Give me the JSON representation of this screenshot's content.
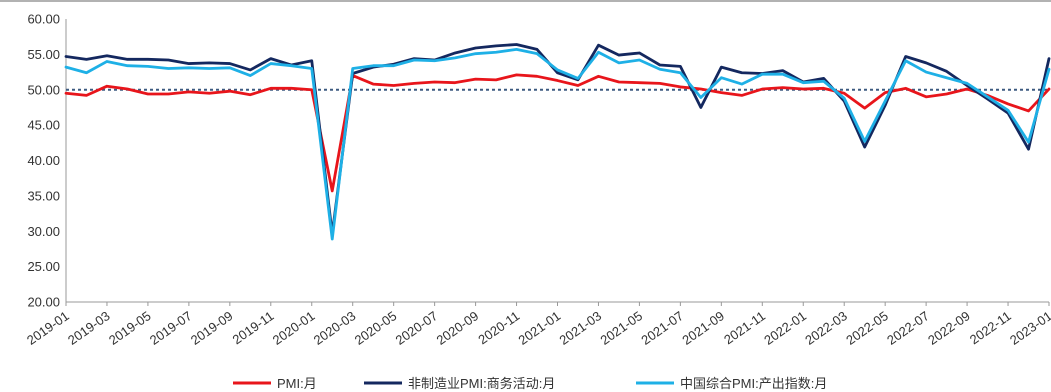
{
  "chart_data": {
    "type": "line",
    "title": "",
    "xlabel": "",
    "ylabel": "",
    "ylim": [
      20,
      60
    ],
    "yticks": [
      "20.00",
      "25.00",
      "30.00",
      "35.00",
      "40.00",
      "45.00",
      "50.00",
      "55.00",
      "60.00"
    ],
    "reference_line": 50,
    "x": [
      "2019-01",
      "2019-02",
      "2019-03",
      "2019-04",
      "2019-05",
      "2019-06",
      "2019-07",
      "2019-08",
      "2019-09",
      "2019-10",
      "2019-11",
      "2019-12",
      "2020-01",
      "2020-02",
      "2020-03",
      "2020-04",
      "2020-05",
      "2020-06",
      "2020-07",
      "2020-08",
      "2020-09",
      "2020-10",
      "2020-11",
      "2020-12",
      "2021-01",
      "2021-02",
      "2021-03",
      "2021-04",
      "2021-05",
      "2021-06",
      "2021-07",
      "2021-08",
      "2021-09",
      "2021-10",
      "2021-11",
      "2021-12",
      "2022-01",
      "2022-02",
      "2022-03",
      "2022-04",
      "2022-05",
      "2022-06",
      "2022-07",
      "2022-08",
      "2022-09",
      "2022-10",
      "2022-11",
      "2022-12",
      "2023-01"
    ],
    "xticks": [
      "2019-01",
      "2019-03",
      "2019-05",
      "2019-07",
      "2019-09",
      "2019-11",
      "2020-01",
      "2020-03",
      "2020-05",
      "2020-07",
      "2020-09",
      "2020-11",
      "2021-01",
      "2021-03",
      "2021-05",
      "2021-07",
      "2021-09",
      "2021-11",
      "2022-01",
      "2022-03",
      "2022-05",
      "2022-07",
      "2022-09",
      "2022-11",
      "2023-01"
    ],
    "series": [
      {
        "name": "PMI:月",
        "color": "#e8151b",
        "values": [
          49.5,
          49.2,
          50.5,
          50.1,
          49.4,
          49.4,
          49.7,
          49.5,
          49.8,
          49.3,
          50.2,
          50.2,
          50.0,
          35.7,
          52.0,
          50.8,
          50.6,
          50.9,
          51.1,
          51.0,
          51.5,
          51.4,
          52.1,
          51.9,
          51.3,
          50.6,
          51.9,
          51.1,
          51.0,
          50.9,
          50.4,
          50.1,
          49.6,
          49.2,
          50.1,
          50.3,
          50.1,
          50.2,
          49.5,
          47.4,
          49.6,
          50.2,
          49.0,
          49.4,
          50.1,
          49.2,
          48.0,
          47.0,
          50.1
        ]
      },
      {
        "name": "非制造业PMI:商务活动:月",
        "color": "#14285f",
        "values": [
          54.7,
          54.3,
          54.8,
          54.3,
          54.3,
          54.2,
          53.7,
          53.8,
          53.7,
          52.8,
          54.4,
          53.5,
          54.1,
          29.6,
          52.3,
          53.2,
          53.6,
          54.4,
          54.2,
          55.2,
          55.9,
          56.2,
          56.4,
          55.7,
          52.4,
          51.4,
          56.3,
          54.9,
          55.2,
          53.5,
          53.3,
          47.5,
          53.2,
          52.4,
          52.3,
          52.7,
          51.1,
          51.6,
          48.4,
          41.9,
          47.8,
          54.7,
          53.8,
          52.6,
          50.6,
          48.7,
          46.7,
          41.6,
          54.4
        ]
      },
      {
        "name": "中国综合PMI:产出指数:月",
        "color": "#1eb0e6",
        "values": [
          53.2,
          52.4,
          54.0,
          53.4,
          53.3,
          53.0,
          53.1,
          53.0,
          53.1,
          52.0,
          53.7,
          53.4,
          53.0,
          28.9,
          53.0,
          53.4,
          53.4,
          54.2,
          54.1,
          54.5,
          55.1,
          55.3,
          55.7,
          55.1,
          52.8,
          51.6,
          55.3,
          53.8,
          54.2,
          52.9,
          52.4,
          48.9,
          51.7,
          50.8,
          52.2,
          52.2,
          51.0,
          51.2,
          48.8,
          42.7,
          48.4,
          54.1,
          52.5,
          51.7,
          50.9,
          49.0,
          47.1,
          42.6,
          52.9
        ]
      }
    ],
    "legend_position": "bottom-center"
  }
}
